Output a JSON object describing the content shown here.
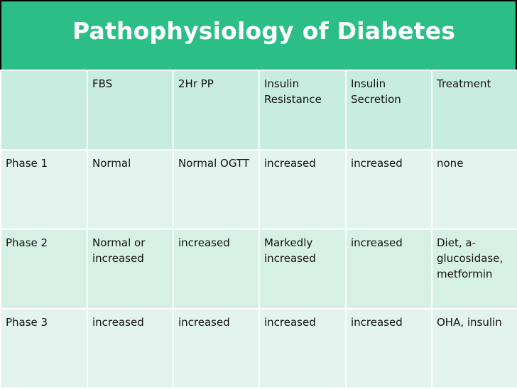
{
  "title": "Pathophysiology of Diabetes",
  "colors": {
    "title_bar": "#2bbf87",
    "header_row": "#c9ece0",
    "row_light": "#e3f4ee",
    "row_alt": "#d7f0e6",
    "background": "#000000"
  },
  "table": {
    "headers": [
      "",
      "FBS",
      "2Hr PP",
      "Insulin Resistance",
      "Insulin Secretion",
      "Treatment"
    ],
    "rows": [
      [
        "Phase 1",
        "Normal",
        "Normal OGTT",
        "increased",
        "increased",
        "none"
      ],
      [
        "Phase 2",
        "Normal or increased",
        "increased",
        "Markedly increased",
        "increased",
        "Diet, a-glucosidase, metformin"
      ],
      [
        "Phase 3",
        "increased",
        "increased",
        "increased",
        "increased",
        "OHA, insulin"
      ]
    ]
  }
}
